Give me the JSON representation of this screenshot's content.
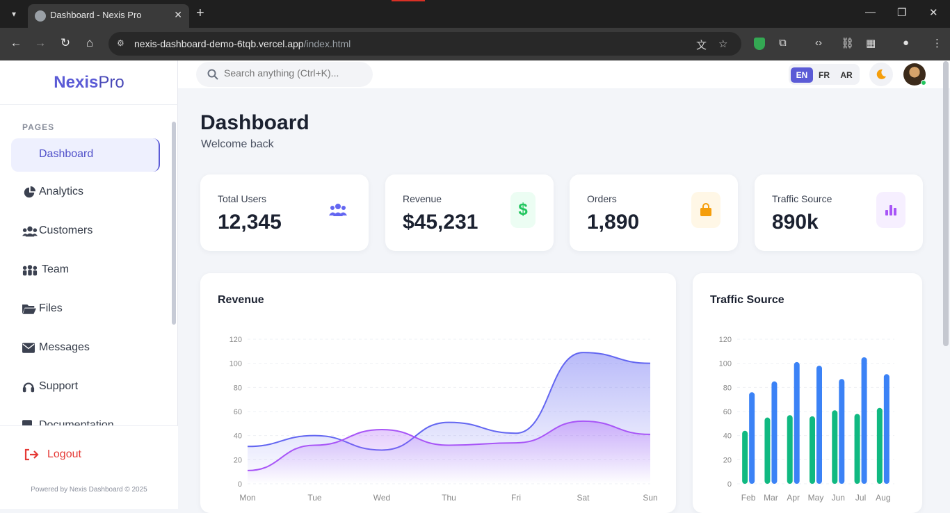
{
  "browser": {
    "tab_title": "Dashboard - Nexis Pro",
    "url_host": "nexis-dashboard-demo-6tqb.vercel.app",
    "url_path": "/index.html"
  },
  "brand": {
    "part1": "Nexis",
    "part2": "Pro"
  },
  "sidebar": {
    "section": "PAGES",
    "items": [
      {
        "label": "Dashboard",
        "icon": "dashboard-icon",
        "active": true
      },
      {
        "label": "Analytics",
        "icon": "pie-chart-icon"
      },
      {
        "label": "Customers",
        "icon": "users-icon"
      },
      {
        "label": "Team",
        "icon": "team-icon"
      },
      {
        "label": "Files",
        "icon": "folder-icon"
      },
      {
        "label": "Messages",
        "icon": "envelope-icon"
      },
      {
        "label": "Support",
        "icon": "headset-icon"
      },
      {
        "label": "Documentation",
        "icon": "book-icon"
      }
    ],
    "logout": "Logout",
    "powered": "Powered by Nexis Dashboard © 2025"
  },
  "topbar": {
    "search_placeholder": "Search anything (Ctrl+K)...",
    "languages": [
      "EN",
      "FR",
      "AR"
    ],
    "active_language": "EN"
  },
  "page": {
    "title": "Dashboard",
    "subtitle": "Welcome back"
  },
  "stats": [
    {
      "label": "Total Users",
      "value": "12,345",
      "icon": "users-icon",
      "color": "#6366f1",
      "bg": "#ffffff"
    },
    {
      "label": "Revenue",
      "value": "$45,231",
      "icon": "dollar-icon",
      "color": "#22c55e",
      "bg": "#ecfdf3"
    },
    {
      "label": "Orders",
      "value": "1,890",
      "icon": "shopping-bag-icon",
      "color": "#f59e0b",
      "bg": "#fff7e6"
    },
    {
      "label": "Traffic Source",
      "value": "890k",
      "icon": "bar-chart-icon",
      "color": "#a855f7",
      "bg": "#f6efff"
    }
  ],
  "chart_data": [
    {
      "type": "area",
      "title": "Revenue",
      "categories": [
        "Mon",
        "Tue",
        "Wed",
        "Thu",
        "Fri",
        "Sat",
        "Sun"
      ],
      "yticks": [
        0,
        20,
        40,
        60,
        80,
        100,
        120
      ],
      "ylim": [
        0,
        120
      ],
      "series": [
        {
          "color": "#6366f1",
          "values": [
            31,
            40,
            28,
            51,
            42,
            109,
            100
          ]
        },
        {
          "color": "#a855f7",
          "values": [
            11,
            32,
            45,
            32,
            34,
            52,
            41
          ]
        }
      ]
    },
    {
      "type": "bar",
      "title": "Traffic Source",
      "categories": [
        "Feb",
        "Mar",
        "Apr",
        "May",
        "Jun",
        "Jul",
        "Aug"
      ],
      "yticks": [
        0,
        20,
        40,
        60,
        80,
        100,
        120
      ],
      "ylim": [
        0,
        120
      ],
      "series": [
        {
          "color": "#10b981",
          "values": [
            44,
            55,
            57,
            56,
            61,
            58,
            63
          ]
        },
        {
          "color": "#3b82f6",
          "values": [
            76,
            85,
            101,
            98,
            87,
            105,
            91
          ]
        }
      ]
    }
  ]
}
